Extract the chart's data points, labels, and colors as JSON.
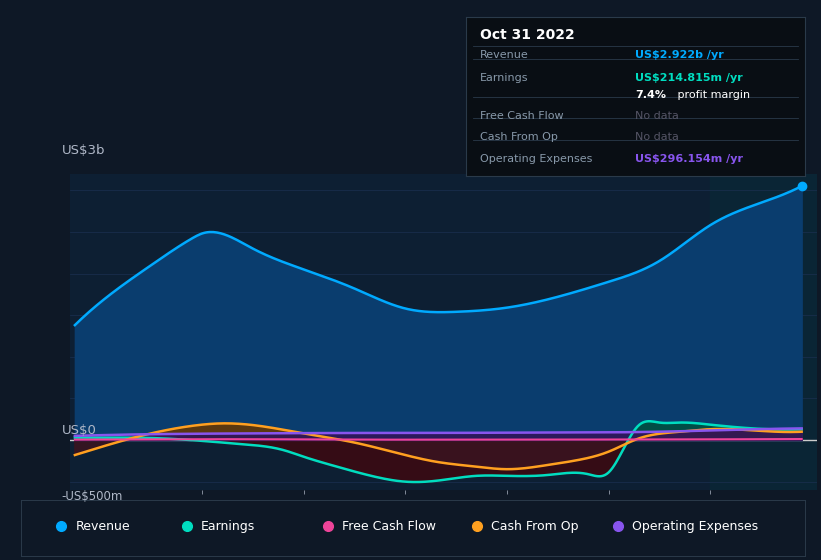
{
  "bg_color": "#0e1826",
  "plot_bg_color": "#0d1f33",
  "grid_color": "#1a3050",
  "text_color": "#b0b8c8",
  "zero_line_color": "#cccccc",
  "revenue_color": "#00aaff",
  "revenue_fill": "#0a3d6e",
  "earnings_color": "#00ddc0",
  "earnings_fill_pos": "#005040",
  "earnings_fill_neg": "#3a0a12",
  "cashop_color": "#ffa020",
  "cashop_fill_pos": "#6a3800",
  "cashop_fill_neg": "#3a1420",
  "opex_color": "#8855ee",
  "opex_fill": "#30155a",
  "cashflow_color": "#ee4499",
  "vspan_color": "#0a2535",
  "dot_color": "#00aaff",
  "revenue_x": [
    2015.75,
    2016.1,
    2016.5,
    2016.9,
    2017.0,
    2017.5,
    2018.0,
    2018.5,
    2019.0,
    2019.5,
    2020.0,
    2020.5,
    2021.0,
    2021.5,
    2022.0,
    2022.5,
    2022.9
  ],
  "revenue_y": [
    1380,
    1750,
    2100,
    2420,
    2480,
    2300,
    2050,
    1820,
    1580,
    1540,
    1590,
    1720,
    1900,
    2150,
    2580,
    2850,
    3050
  ],
  "earnings_x": [
    2015.75,
    2016.2,
    2016.6,
    2017.0,
    2017.4,
    2017.8,
    2018.0,
    2018.3,
    2018.7,
    2019.0,
    2019.3,
    2019.7,
    2020.0,
    2020.4,
    2020.8,
    2021.0,
    2021.15,
    2021.3,
    2021.5,
    2021.7,
    2022.0,
    2022.3,
    2022.9
  ],
  "earnings_y": [
    30,
    30,
    20,
    -10,
    -50,
    -120,
    -200,
    -310,
    -440,
    -500,
    -490,
    -430,
    -430,
    -420,
    -410,
    -390,
    -100,
    180,
    210,
    210,
    185,
    150,
    130
  ],
  "cashop_x": [
    2015.75,
    2016.1,
    2016.5,
    2016.9,
    2017.2,
    2017.5,
    2018.0,
    2018.5,
    2019.0,
    2019.3,
    2019.7,
    2020.0,
    2020.4,
    2020.7,
    2021.0,
    2021.3,
    2021.7,
    2022.0,
    2022.5,
    2022.9
  ],
  "cashop_y": [
    -180,
    -50,
    80,
    170,
    200,
    180,
    80,
    -30,
    -180,
    -260,
    -320,
    -350,
    -300,
    -240,
    -140,
    20,
    100,
    130,
    110,
    100
  ],
  "opex_x": [
    2015.75,
    2016.5,
    2017.5,
    2018.5,
    2019.0,
    2020.0,
    2021.0,
    2021.5,
    2022.0,
    2022.9
  ],
  "opex_y": [
    50,
    70,
    80,
    85,
    85,
    88,
    92,
    100,
    115,
    140
  ],
  "cashflow_x": [
    2015.75,
    2016.5,
    2017.5,
    2018.5,
    2019.5,
    2020.5,
    2021.5,
    2022.5,
    2022.9
  ],
  "cashflow_y": [
    5,
    8,
    10,
    5,
    5,
    5,
    8,
    10,
    12
  ],
  "xlim": [
    2015.7,
    2023.05
  ],
  "ylim": [
    -600,
    3200
  ],
  "x_ticks": [
    2017,
    2018,
    2019,
    2020,
    2021,
    2022
  ],
  "vline_x": 2022.0,
  "dot_x": 2022.9,
  "dot_y": 3050,
  "tooltip_date": "Oct 31 2022",
  "tooltip_rows": [
    {
      "label": "Revenue",
      "value": "US$2.922b /yr",
      "value_color": "#00aaff",
      "bold": true
    },
    {
      "label": "Earnings",
      "value": "US$214.815m /yr",
      "value_color": "#00ddc0",
      "bold": true
    },
    {
      "label": "",
      "value": "7.4% profit margin",
      "value_color": "#ffffff",
      "bold": false
    },
    {
      "label": "Free Cash Flow",
      "value": "No data",
      "value_color": "#555566",
      "bold": false
    },
    {
      "label": "Cash From Op",
      "value": "No data",
      "value_color": "#555566",
      "bold": false
    },
    {
      "label": "Operating Expenses",
      "value": "US$296.154m /yr",
      "value_color": "#8855ee",
      "bold": true
    }
  ],
  "legend_items": [
    {
      "label": "Revenue",
      "color": "#00aaff"
    },
    {
      "label": "Earnings",
      "color": "#00ddc0"
    },
    {
      "label": "Free Cash Flow",
      "color": "#ee4499"
    },
    {
      "label": "Cash From Op",
      "color": "#ffa020"
    },
    {
      "label": "Operating Expenses",
      "color": "#8855ee"
    }
  ]
}
